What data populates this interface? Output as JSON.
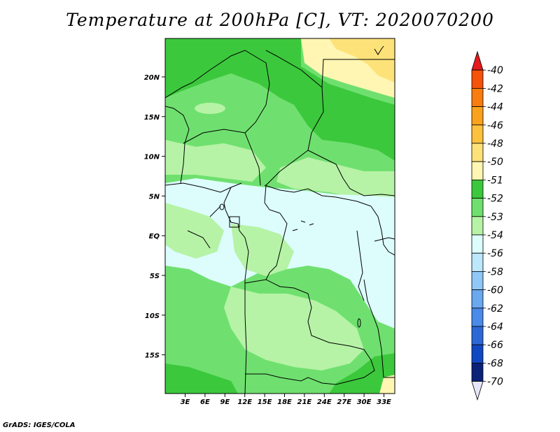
{
  "title": "Temperature at 200hPa [C], VT: 2020070200",
  "credit": "GrADS: IGES/COLA",
  "map": {
    "variable": "Temperature",
    "level": "200hPa",
    "units": "C",
    "valid_time": "2020070200",
    "lat_ticks": [
      "20N",
      "15N",
      "10N",
      "5N",
      "EQ",
      "5S",
      "10S",
      "15S"
    ],
    "lon_ticks": [
      "3E",
      "6E",
      "9E",
      "12E",
      "15E",
      "18E",
      "21E",
      "24E",
      "27E",
      "30E",
      "33E"
    ]
  },
  "colorbar": {
    "labels": [
      "-40",
      "-42",
      "-44",
      "-46",
      "-48",
      "-50",
      "-51",
      "-52",
      "-53",
      "-54",
      "-56",
      "-58",
      "-60",
      "-62",
      "-64",
      "-66",
      "-68",
      "-70"
    ],
    "colors": [
      "#e41a1c",
      "#f5520a",
      "#f97c10",
      "#fba21d",
      "#fcc23d",
      "#fde27a",
      "#fef6b2",
      "#3cc83c",
      "#6fe06f",
      "#b6f3a6",
      "#ddfdfd",
      "#bde7fb",
      "#90c7f7",
      "#6aa8f0",
      "#4a8ae8",
      "#2c69d6",
      "#1048c2",
      "#0a2278",
      "#101066"
    ]
  },
  "colors": {
    "cold_band": "#ddfdfd",
    "light_green": "#b6f3a6",
    "mid_green": "#6fe06f",
    "dark_green": "#3cc83c",
    "yellow": "#fef6b2",
    "tan": "#fde27a"
  }
}
